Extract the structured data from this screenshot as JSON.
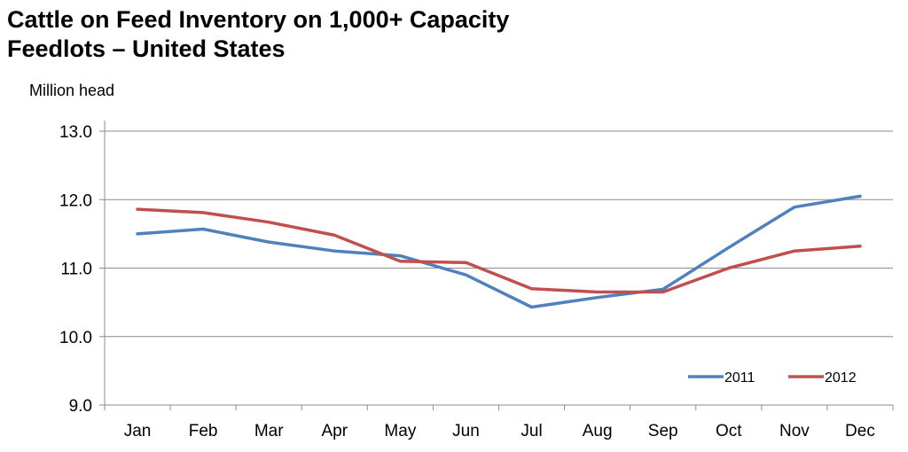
{
  "chart_data": {
    "type": "line",
    "title_lines": [
      "Cattle on Feed Inventory on 1,000+ Capacity",
      "Feedlots – United States"
    ],
    "ylabel": "Million head",
    "xlabel": "",
    "categories": [
      "Jan",
      "Feb",
      "Mar",
      "Apr",
      "May",
      "Jun",
      "Jul",
      "Aug",
      "Sep",
      "Oct",
      "Nov",
      "Dec"
    ],
    "ylim": [
      9.0,
      13.0
    ],
    "yticks": [
      "9.0",
      "10.0",
      "11.0",
      "12.0",
      "13.0"
    ],
    "grid": true,
    "legend_position": "bottom-right",
    "series": [
      {
        "name": "2011",
        "color": "#4F81BD",
        "values": [
          11.5,
          11.57,
          11.38,
          11.25,
          11.18,
          10.9,
          10.43,
          10.57,
          10.69,
          11.3,
          11.89,
          12.05
        ]
      },
      {
        "name": "2012",
        "color": "#C0504D",
        "values": [
          11.86,
          11.81,
          11.67,
          11.48,
          11.1,
          11.08,
          10.7,
          10.65,
          10.65,
          11.0,
          11.25,
          11.32
        ]
      }
    ]
  }
}
